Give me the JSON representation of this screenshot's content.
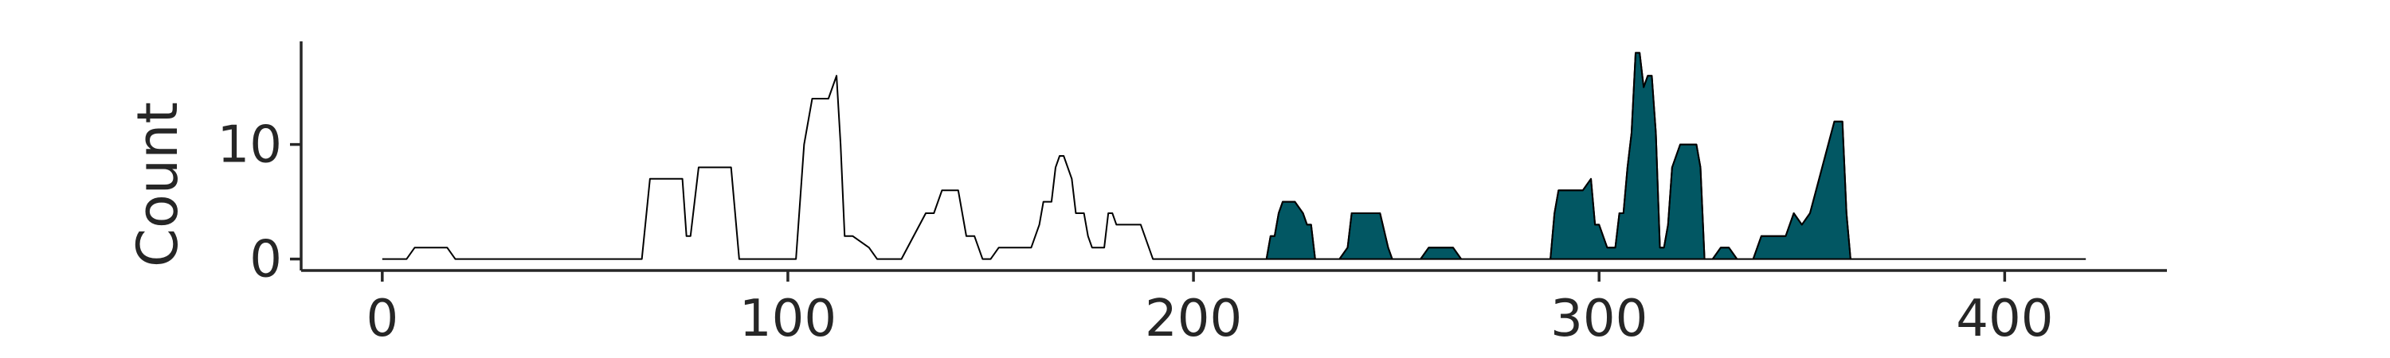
{
  "chart_data": {
    "type": "area",
    "title": "",
    "xlabel": "",
    "ylabel": "Count",
    "xlim": [
      -20,
      440
    ],
    "ylim": [
      -1,
      19
    ],
    "xticks": [
      0,
      100,
      200,
      300,
      400
    ],
    "yticks": [
      0,
      10
    ],
    "grid": false,
    "legend": "none",
    "colors": {
      "fill": "#025763",
      "line": "#000000",
      "axis": "#262626"
    },
    "highlight_range": [
      218,
      372
    ],
    "series": [
      {
        "x": [
          0,
          6,
          8,
          16,
          18,
          30,
          64,
          66,
          74,
          75,
          76,
          78,
          86,
          88,
          102,
          104,
          106,
          110,
          112,
          113,
          114,
          116,
          120,
          122,
          128,
          134,
          136,
          138,
          142,
          144,
          146,
          148,
          150,
          152,
          160,
          162,
          163,
          165,
          166,
          167,
          168,
          170,
          171,
          173,
          174,
          175,
          177,
          178,
          179,
          180,
          181,
          183,
          187,
          190,
          200,
          218,
          219,
          220,
          221,
          222,
          223,
          225,
          227,
          228,
          229,
          230,
          231,
          232,
          236,
          238,
          239,
          240,
          242,
          246,
          248,
          249,
          250,
          256,
          258,
          264,
          266,
          288,
          289,
          290,
          292,
          296,
          298,
          299,
          300,
          302,
          304,
          305,
          306,
          307,
          308,
          309,
          310,
          311,
          312,
          313,
          314,
          315,
          316,
          317,
          318,
          320,
          322,
          324,
          325,
          326,
          328,
          330,
          331,
          332,
          334,
          337,
          338,
          340,
          342,
          346,
          348,
          350,
          352,
          358,
          359,
          360,
          361,
          362,
          366,
          368,
          370,
          372,
          374,
          380,
          420
        ],
        "values": [
          0,
          0,
          1,
          1,
          0,
          0,
          0,
          7,
          7,
          2,
          2,
          8,
          8,
          0,
          0,
          10,
          14,
          14,
          16,
          10,
          2,
          2,
          1,
          0,
          0,
          4,
          4,
          6,
          6,
          2,
          2,
          0,
          0,
          1,
          1,
          3,
          5,
          5,
          8,
          9,
          9,
          7,
          4,
          4,
          2,
          1,
          1,
          1,
          4,
          4,
          3,
          3,
          3,
          0,
          0,
          0,
          2,
          2,
          4,
          5,
          5,
          5,
          4,
          3,
          3,
          0,
          0,
          0,
          0,
          1,
          4,
          4,
          4,
          4,
          1,
          0,
          0,
          0,
          1,
          1,
          0,
          0,
          4,
          6,
          6,
          6,
          7,
          3,
          3,
          1,
          1,
          4,
          4,
          8,
          11,
          18,
          18,
          15,
          16,
          16,
          11,
          1,
          1,
          3,
          8,
          10,
          10,
          10,
          8,
          0,
          0,
          1,
          1,
          1,
          0,
          0,
          0,
          2,
          2,
          2,
          4,
          3,
          4,
          12,
          12,
          12,
          4,
          0,
          0,
          0,
          0,
          0,
          0,
          0,
          0
        ]
      }
    ]
  }
}
